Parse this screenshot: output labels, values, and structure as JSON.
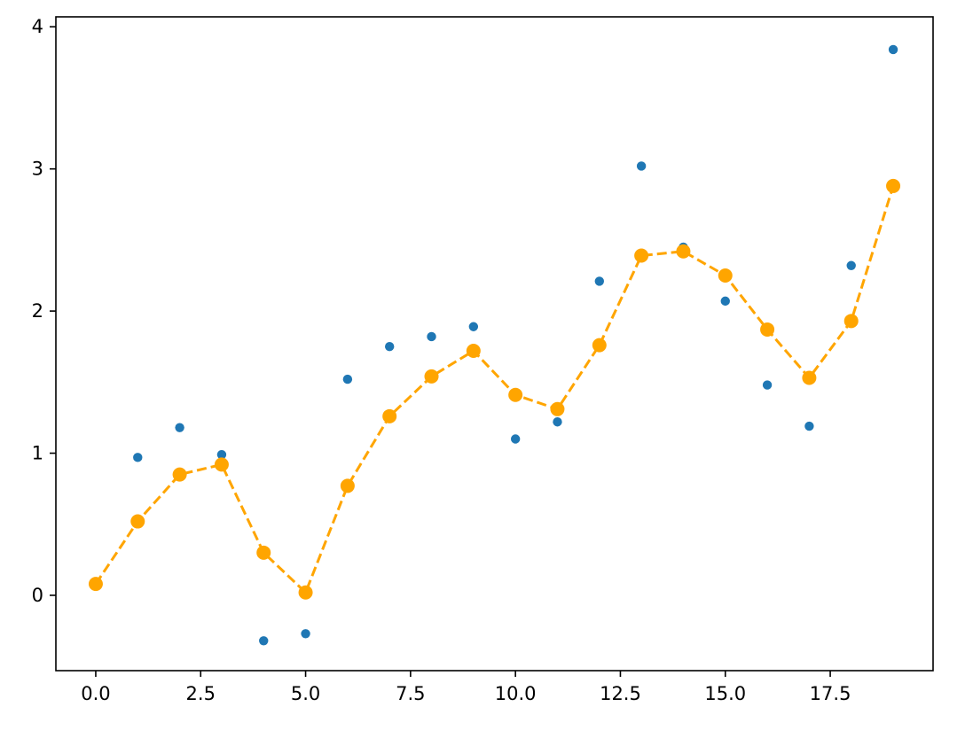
{
  "chart_data": {
    "type": "scatter",
    "title": "",
    "xlabel": "",
    "ylabel": "",
    "xlim": [
      -0.95,
      19.95
    ],
    "ylim": [
      -0.53,
      4.07
    ],
    "xticks": [
      0.0,
      2.5,
      5.0,
      7.5,
      10.0,
      12.5,
      15.0,
      17.5
    ],
    "xtick_labels": [
      "0.0",
      "2.5",
      "5.0",
      "7.5",
      "10.0",
      "12.5",
      "15.0",
      "17.5"
    ],
    "yticks": [
      0,
      1,
      2,
      3,
      4
    ],
    "ytick_labels": [
      "0",
      "1",
      "2",
      "3",
      "4"
    ],
    "grid": false,
    "series": [
      {
        "kind": "scatter",
        "color": "#1f77b4",
        "x": [
          0,
          1,
          2,
          3,
          4,
          5,
          6,
          7,
          8,
          9,
          10,
          11,
          12,
          13,
          14,
          15,
          16,
          17,
          18,
          19
        ],
        "y": [
          0.08,
          0.97,
          1.18,
          0.99,
          -0.32,
          -0.27,
          1.52,
          1.75,
          1.82,
          1.89,
          1.1,
          1.22,
          2.21,
          3.02,
          2.45,
          2.07,
          1.48,
          1.19,
          2.32,
          3.84
        ]
      },
      {
        "kind": "line",
        "style": "dashed",
        "marker": "circle",
        "color": "#ffa500",
        "x": [
          0,
          1,
          2,
          3,
          4,
          5,
          6,
          7,
          8,
          9,
          10,
          11,
          12,
          13,
          14,
          15,
          16,
          17,
          18,
          19
        ],
        "y": [
          0.08,
          0.52,
          0.85,
          0.92,
          0.3,
          0.02,
          0.77,
          1.26,
          1.54,
          1.72,
          1.41,
          1.31,
          1.76,
          2.39,
          2.42,
          2.25,
          1.87,
          1.53,
          1.93,
          2.88
        ]
      }
    ]
  }
}
